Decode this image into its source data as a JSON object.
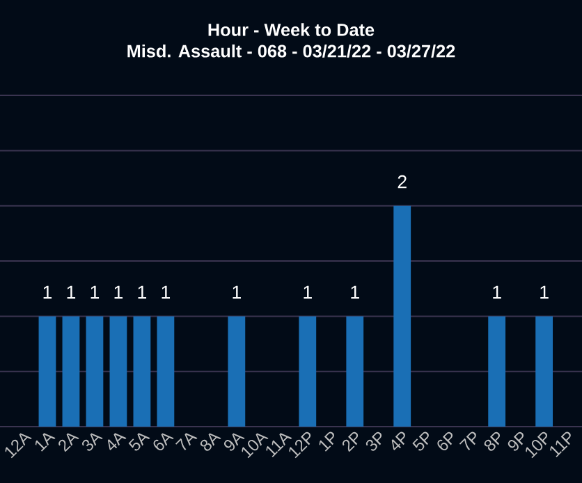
{
  "chart_data": {
    "type": "bar",
    "title": "Hour - Week to Date",
    "subtitle": "Misd. Assault - 068 - 03/21/22 - 03/27/22",
    "categories": [
      "12A",
      "1A",
      "2A",
      "3A",
      "4A",
      "5A",
      "6A",
      "7A",
      "8A",
      "9A",
      "10A",
      "11A",
      "12P",
      "1P",
      "2P",
      "3P",
      "4P",
      "5P",
      "6P",
      "7P",
      "8P",
      "9P",
      "10P",
      "11P"
    ],
    "values": [
      0,
      1,
      1,
      1,
      1,
      1,
      1,
      0,
      0,
      1,
      0,
      0,
      1,
      0,
      1,
      0,
      2,
      0,
      0,
      0,
      1,
      0,
      1,
      0
    ],
    "value_labels": [
      null,
      "1",
      "1",
      "1",
      "1",
      "1",
      "1",
      null,
      null,
      "1",
      null,
      null,
      "1",
      null,
      "1",
      null,
      "2",
      null,
      null,
      null,
      "1",
      null,
      "1",
      null
    ],
    "color": "#1a6fb5",
    "ylim": [
      0,
      3
    ],
    "yticks": [
      {
        "value": 0,
        "label": null
      },
      {
        "value": 0.5,
        "label": null
      },
      {
        "value": 1,
        "label": null
      },
      {
        "value": 1.5,
        "label": null
      },
      {
        "value": 2,
        "label": null
      },
      {
        "value": 2.5,
        "label": null
      },
      {
        "value": 3,
        "label": null
      }
    ],
    "tick_labels": "x",
    "grid": "y"
  }
}
